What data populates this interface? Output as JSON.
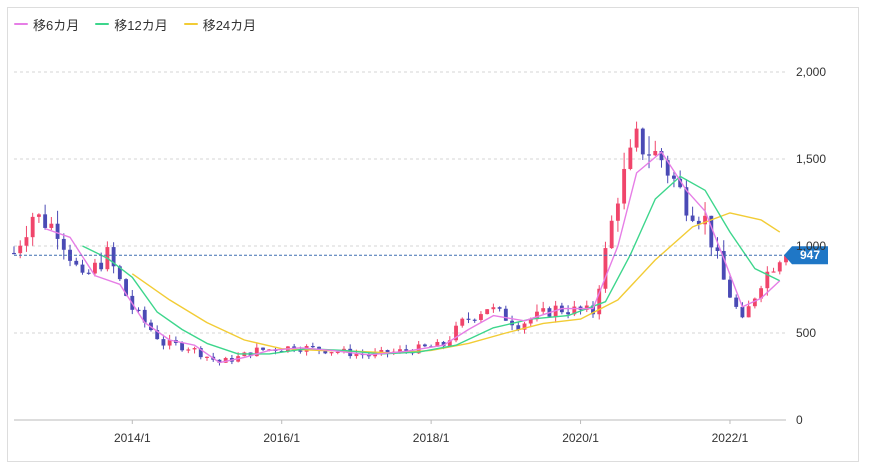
{
  "chart_data": {
    "type": "candlestick",
    "legend": [
      {
        "name": "移6カ月",
        "color": "#e67ee6"
      },
      {
        "name": "移12カ月",
        "color": "#3dd68c"
      },
      {
        "name": "移24カ月",
        "color": "#f2cc35"
      }
    ],
    "ylim": [
      0,
      2000
    ],
    "yticks": [
      0,
      500,
      1000,
      1500,
      2000
    ],
    "ytick_labels": [
      "0",
      "500",
      "1,000",
      "1,500",
      "2,000"
    ],
    "xlim": [
      "2012-06",
      "2022-10"
    ],
    "xticks": [
      "2014-01",
      "2016-01",
      "2018-01",
      "2020-01",
      "2022-01"
    ],
    "xtick_labels": [
      "2014/1",
      "2016/1",
      "2018/1",
      "2020/1",
      "2022/1"
    ],
    "current_value": 947,
    "current_label": "947",
    "colors": {
      "up": "#f0456b",
      "down": "#4a4ab5",
      "grid": "#d5d5d5",
      "current_line": "#3f6fb0",
      "badge": "#1f77c6",
      "frame": "#dddddd"
    },
    "grid": true,
    "legend_position": "top-left",
    "close_anchors": [
      [
        "2012-06",
        960
      ],
      [
        "2012-09",
        1180
      ],
      [
        "2013-01",
        1100
      ],
      [
        "2013-05",
        800
      ],
      [
        "2013-09",
        950
      ],
      [
        "2014-01",
        640
      ],
      [
        "2014-06",
        440
      ],
      [
        "2014-10",
        420
      ],
      [
        "2015-03",
        330
      ],
      [
        "2015-06",
        360
      ],
      [
        "2015-09",
        400
      ],
      [
        "2016-03",
        420
      ],
      [
        "2016-09",
        400
      ],
      [
        "2017-03",
        370
      ],
      [
        "2017-09",
        400
      ],
      [
        "2018-03",
        430
      ],
      [
        "2018-06",
        560
      ],
      [
        "2018-10",
        650
      ],
      [
        "2019-03",
        550
      ],
      [
        "2019-09",
        640
      ],
      [
        "2020-03",
        620
      ],
      [
        "2020-07",
        1300
      ],
      [
        "2020-10",
        1600
      ],
      [
        "2021-02",
        1500
      ],
      [
        "2021-06",
        1250
      ],
      [
        "2021-09",
        1150
      ],
      [
        "2021-12",
        800
      ],
      [
        "2022-03",
        560
      ],
      [
        "2022-06",
        800
      ],
      [
        "2022-09",
        947
      ]
    ],
    "sma6": [
      [
        "2012-11",
        1100
      ],
      [
        "2013-03",
        1050
      ],
      [
        "2013-07",
        830
      ],
      [
        "2013-11",
        780
      ],
      [
        "2014-03",
        560
      ],
      [
        "2014-07",
        460
      ],
      [
        "2014-11",
        430
      ],
      [
        "2015-03",
        330
      ],
      [
        "2015-07",
        360
      ],
      [
        "2015-11",
        400
      ],
      [
        "2016-04",
        415
      ],
      [
        "2016-09",
        400
      ],
      [
        "2017-03",
        375
      ],
      [
        "2017-09",
        395
      ],
      [
        "2018-03",
        430
      ],
      [
        "2018-07",
        520
      ],
      [
        "2018-11",
        600
      ],
      [
        "2019-04",
        570
      ],
      [
        "2019-10",
        640
      ],
      [
        "2020-03",
        640
      ],
      [
        "2020-07",
        1000
      ],
      [
        "2020-10",
        1420
      ],
      [
        "2021-02",
        1540
      ],
      [
        "2021-06",
        1320
      ],
      [
        "2021-09",
        1200
      ],
      [
        "2021-12",
        930
      ],
      [
        "2022-03",
        650
      ],
      [
        "2022-06",
        700
      ],
      [
        "2022-09",
        800
      ]
    ],
    "sma12": [
      [
        "2013-05",
        1000
      ],
      [
        "2013-09",
        930
      ],
      [
        "2014-01",
        820
      ],
      [
        "2014-05",
        620
      ],
      [
        "2014-09",
        520
      ],
      [
        "2015-01",
        440
      ],
      [
        "2015-06",
        380
      ],
      [
        "2015-11",
        380
      ],
      [
        "2016-05",
        410
      ],
      [
        "2016-11",
        400
      ],
      [
        "2017-05",
        380
      ],
      [
        "2017-11",
        390
      ],
      [
        "2018-05",
        430
      ],
      [
        "2018-11",
        530
      ],
      [
        "2019-05",
        580
      ],
      [
        "2019-11",
        600
      ],
      [
        "2020-05",
        680
      ],
      [
        "2020-09",
        950
      ],
      [
        "2021-01",
        1270
      ],
      [
        "2021-05",
        1400
      ],
      [
        "2021-09",
        1320
      ],
      [
        "2022-01",
        1080
      ],
      [
        "2022-05",
        870
      ],
      [
        "2022-09",
        800
      ]
    ],
    "sma24": [
      [
        "2014-01",
        840
      ],
      [
        "2014-07",
        690
      ],
      [
        "2015-01",
        560
      ],
      [
        "2015-07",
        460
      ],
      [
        "2016-01",
        410
      ],
      [
        "2016-07",
        400
      ],
      [
        "2017-01",
        395
      ],
      [
        "2017-07",
        385
      ],
      [
        "2018-01",
        400
      ],
      [
        "2018-07",
        440
      ],
      [
        "2019-01",
        500
      ],
      [
        "2019-07",
        555
      ],
      [
        "2020-01",
        580
      ],
      [
        "2020-07",
        690
      ],
      [
        "2021-01",
        920
      ],
      [
        "2021-07",
        1110
      ],
      [
        "2022-01",
        1190
      ],
      [
        "2022-06",
        1150
      ],
      [
        "2022-09",
        1080
      ]
    ]
  }
}
